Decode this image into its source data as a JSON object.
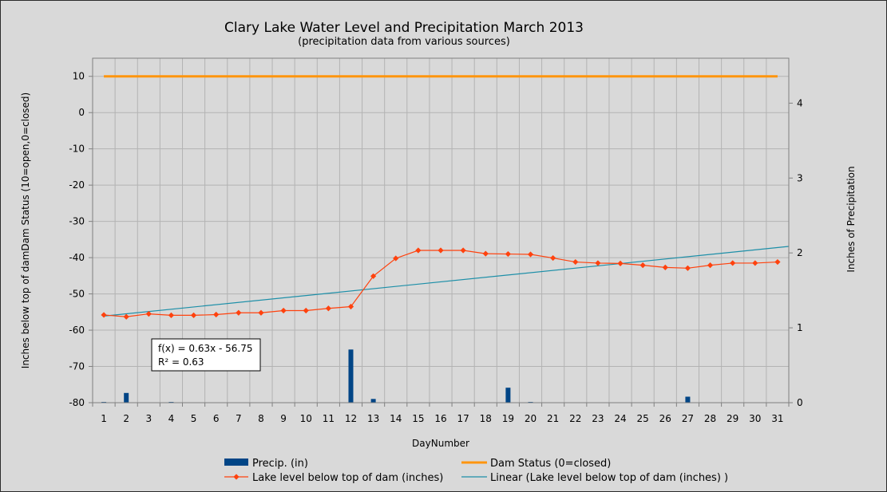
{
  "chart_data": {
    "type": "bar",
    "title": "Clary Lake Water Level and Precipitation March 2013",
    "subtitle": "(precipitation data from various sources)",
    "xlabel": "DayNumber",
    "ylabel_left": "Inches below top of damDam Status (10=open,0=closed)",
    "ylabel_right": "Inches of Precipitation",
    "categories": [
      "1",
      "2",
      "3",
      "4",
      "5",
      "6",
      "7",
      "8",
      "9",
      "10",
      "11",
      "12",
      "13",
      "14",
      "15",
      "16",
      "17",
      "18",
      "19",
      "20",
      "21",
      "22",
      "23",
      "24",
      "25",
      "26",
      "27",
      "28",
      "29",
      "30",
      "31"
    ],
    "ylim_left": [
      -80,
      15
    ],
    "yticks_left": [
      10,
      0,
      -10,
      -20,
      -30,
      -40,
      -50,
      -60,
      -70,
      -80
    ],
    "ylim_right": [
      0,
      4.6
    ],
    "yticks_right": [
      0,
      1,
      2,
      3,
      4
    ],
    "grid": true,
    "legend_placement": "bottom",
    "series": [
      {
        "name": "Precip. (in)",
        "kind": "bar",
        "axis": "right",
        "color": "#004586",
        "values": [
          0.01,
          0.13,
          0,
          0.01,
          0,
          0,
          0,
          0,
          0,
          0,
          0,
          0.71,
          0.05,
          0,
          0,
          0,
          0,
          0,
          0.2,
          0.01,
          0,
          0,
          0,
          0,
          0,
          0,
          0.08,
          0,
          0,
          0,
          0
        ]
      },
      {
        "name": "Dam Status (0=closed)",
        "kind": "line",
        "axis": "left",
        "color": "#ff950e",
        "values": [
          10,
          10,
          10,
          10,
          10,
          10,
          10,
          10,
          10,
          10,
          10,
          10,
          10,
          10,
          10,
          10,
          10,
          10,
          10,
          10,
          10,
          10,
          10,
          10,
          10,
          10,
          10,
          10,
          10,
          10,
          10
        ]
      },
      {
        "name": "Lake level below top of dam (inches)",
        "kind": "line-markers",
        "axis": "left",
        "color": "#ff420e",
        "values": [
          -55.8,
          -56.3,
          -55.5,
          -55.9,
          -55.9,
          -55.7,
          -55.2,
          -55.2,
          -54.6,
          -54.6,
          -54.0,
          -53.5,
          -45.1,
          -40.2,
          -38.0,
          -38.0,
          -38.0,
          -38.9,
          -39.0,
          -39.1,
          -40.1,
          -41.2,
          -41.5,
          -41.6,
          -42.1,
          -42.7,
          -42.9,
          -42.1,
          -41.5,
          -41.5,
          -41.2
        ]
      },
      {
        "name": "Linear (Lake level below top of dam (inches)  )",
        "kind": "trendline",
        "axis": "left",
        "color": "#1d8fa8",
        "slope": 0.63,
        "intercept": -56.75
      }
    ],
    "annotation": {
      "line1": "f(x) = 0.63x - 56.75",
      "line2": "R² = 0.63"
    }
  }
}
